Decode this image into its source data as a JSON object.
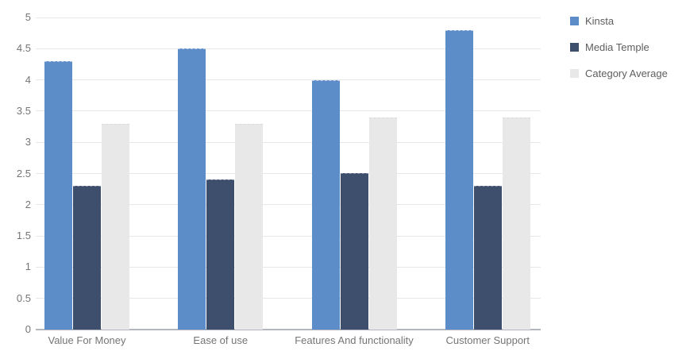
{
  "chart_data": {
    "type": "bar",
    "title": "",
    "categories": [
      "Value For Money",
      "Ease of use",
      "Features And functionality",
      "Customer Support"
    ],
    "series": [
      {
        "name": "Kinsta",
        "color": "#5c8dc8",
        "values": [
          4.3,
          4.5,
          4.0,
          4.8
        ]
      },
      {
        "name": "Media Temple",
        "color": "#3d4f6d",
        "values": [
          2.3,
          2.4,
          2.5,
          2.3
        ]
      },
      {
        "name": "Category Average",
        "color": "#e8e8e8",
        "values": [
          3.3,
          3.3,
          3.4,
          3.4
        ]
      }
    ],
    "xlabel": "",
    "ylabel": "",
    "ylim": [
      0,
      5
    ],
    "ytick_step": 0.5,
    "yticks": [
      0,
      0.5,
      1,
      1.5,
      2,
      2.5,
      3,
      3.5,
      4,
      4.5,
      5
    ],
    "grid": true,
    "legend_position": "right"
  },
  "colors": {
    "gridline": "#e7e7e7",
    "axis_baseline": "#b3b7bd",
    "tick_text": "#757575",
    "category_text": "#757575",
    "legend_text": "#5e5e5e",
    "background": "#ffffff"
  }
}
